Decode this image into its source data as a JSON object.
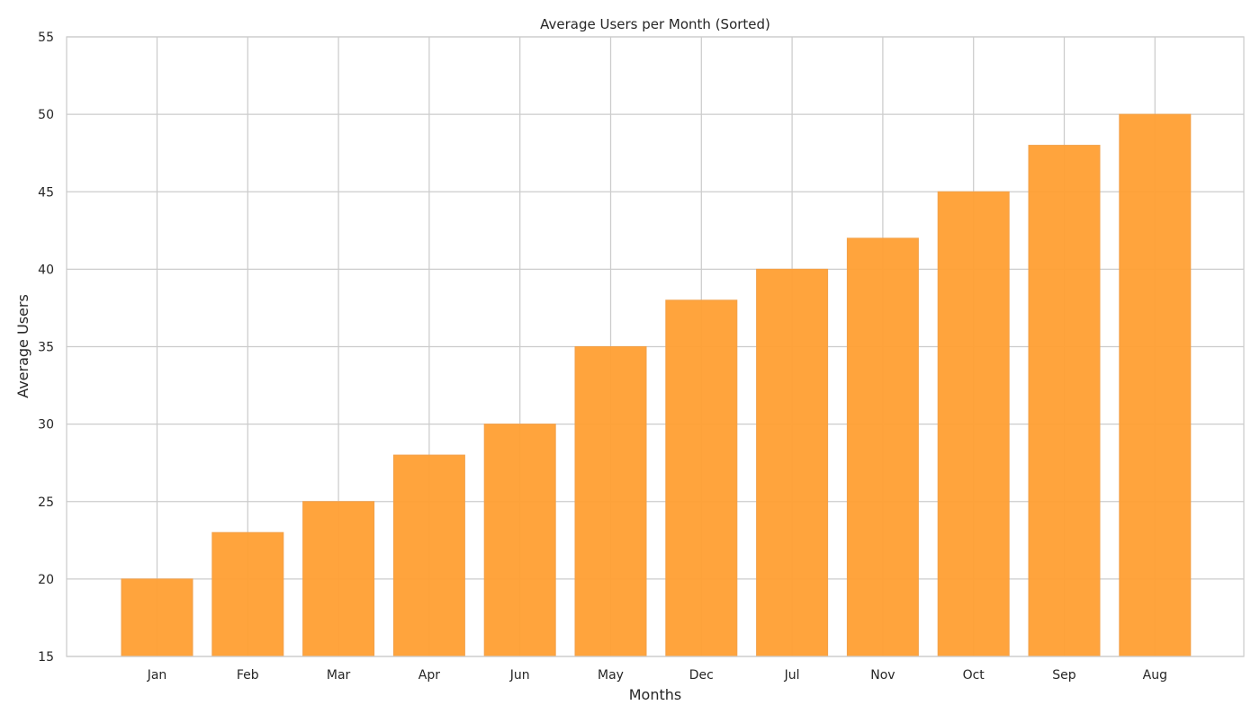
{
  "chart_data": {
    "type": "bar",
    "title": "Average Users per Month (Sorted)",
    "xlabel": "Months",
    "ylabel": "Average Users",
    "categories": [
      "Jan",
      "Feb",
      "Mar",
      "Apr",
      "Jun",
      "May",
      "Dec",
      "Jul",
      "Nov",
      "Oct",
      "Sep",
      "Aug"
    ],
    "values": [
      20,
      23,
      25,
      28,
      30,
      35,
      38,
      40,
      42,
      45,
      48,
      50
    ],
    "ylim": [
      15,
      55
    ],
    "yticks": [
      15,
      20,
      25,
      30,
      35,
      40,
      45,
      50,
      55
    ],
    "grid": true,
    "legend": "none",
    "colors": {
      "bar": "#ff9f33",
      "bar_edge": "#f2a14a",
      "grid": "#cccccc",
      "spine": "#cccccc",
      "text": "#262626"
    }
  }
}
